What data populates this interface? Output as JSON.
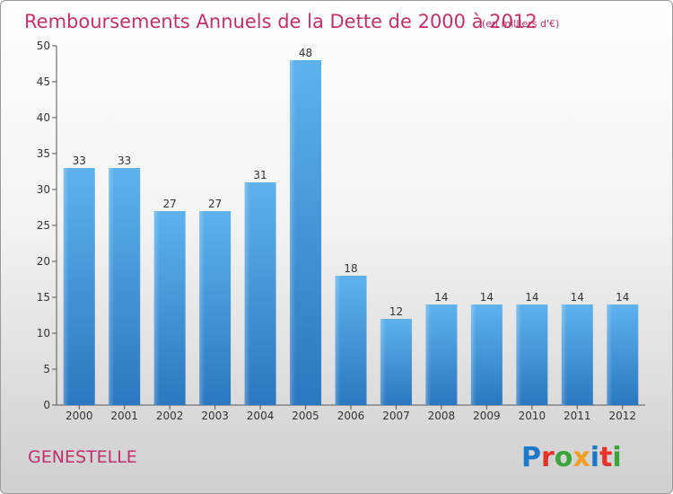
{
  "chart_data": {
    "type": "bar",
    "title": "Remboursements Annuels de la Dette de 2000 à 2012",
    "unit": "(en milliers d'€)",
    "categories": [
      "2000",
      "2001",
      "2002",
      "2003",
      "2004",
      "2005",
      "2006",
      "2007",
      "2008",
      "2009",
      "2010",
      "2011",
      "2012"
    ],
    "values": [
      33,
      33,
      27,
      27,
      31,
      48,
      18,
      12,
      14,
      14,
      14,
      14,
      14
    ],
    "data_labels": [
      "33",
      "33",
      "27",
      "27",
      "31",
      "48",
      "18",
      "12",
      "14",
      "14",
      "14",
      "14",
      "14"
    ],
    "yticks": [
      "0",
      "5",
      "10",
      "15",
      "20",
      "25",
      "30",
      "35",
      "40",
      "45",
      "50"
    ],
    "ylim": [
      0,
      50
    ],
    "xlabel": "",
    "ylabel": "",
    "grid": false,
    "bar_color": "#4a9fe0"
  },
  "footer": {
    "commune": "GENESTELLE",
    "logo": "Proxiti",
    "logo_colors": [
      "#1e78c8",
      "#e8322a",
      "#3aa53a",
      "#f0a020",
      "#1e78c8",
      "#e8322a",
      "#3aa53a"
    ]
  }
}
